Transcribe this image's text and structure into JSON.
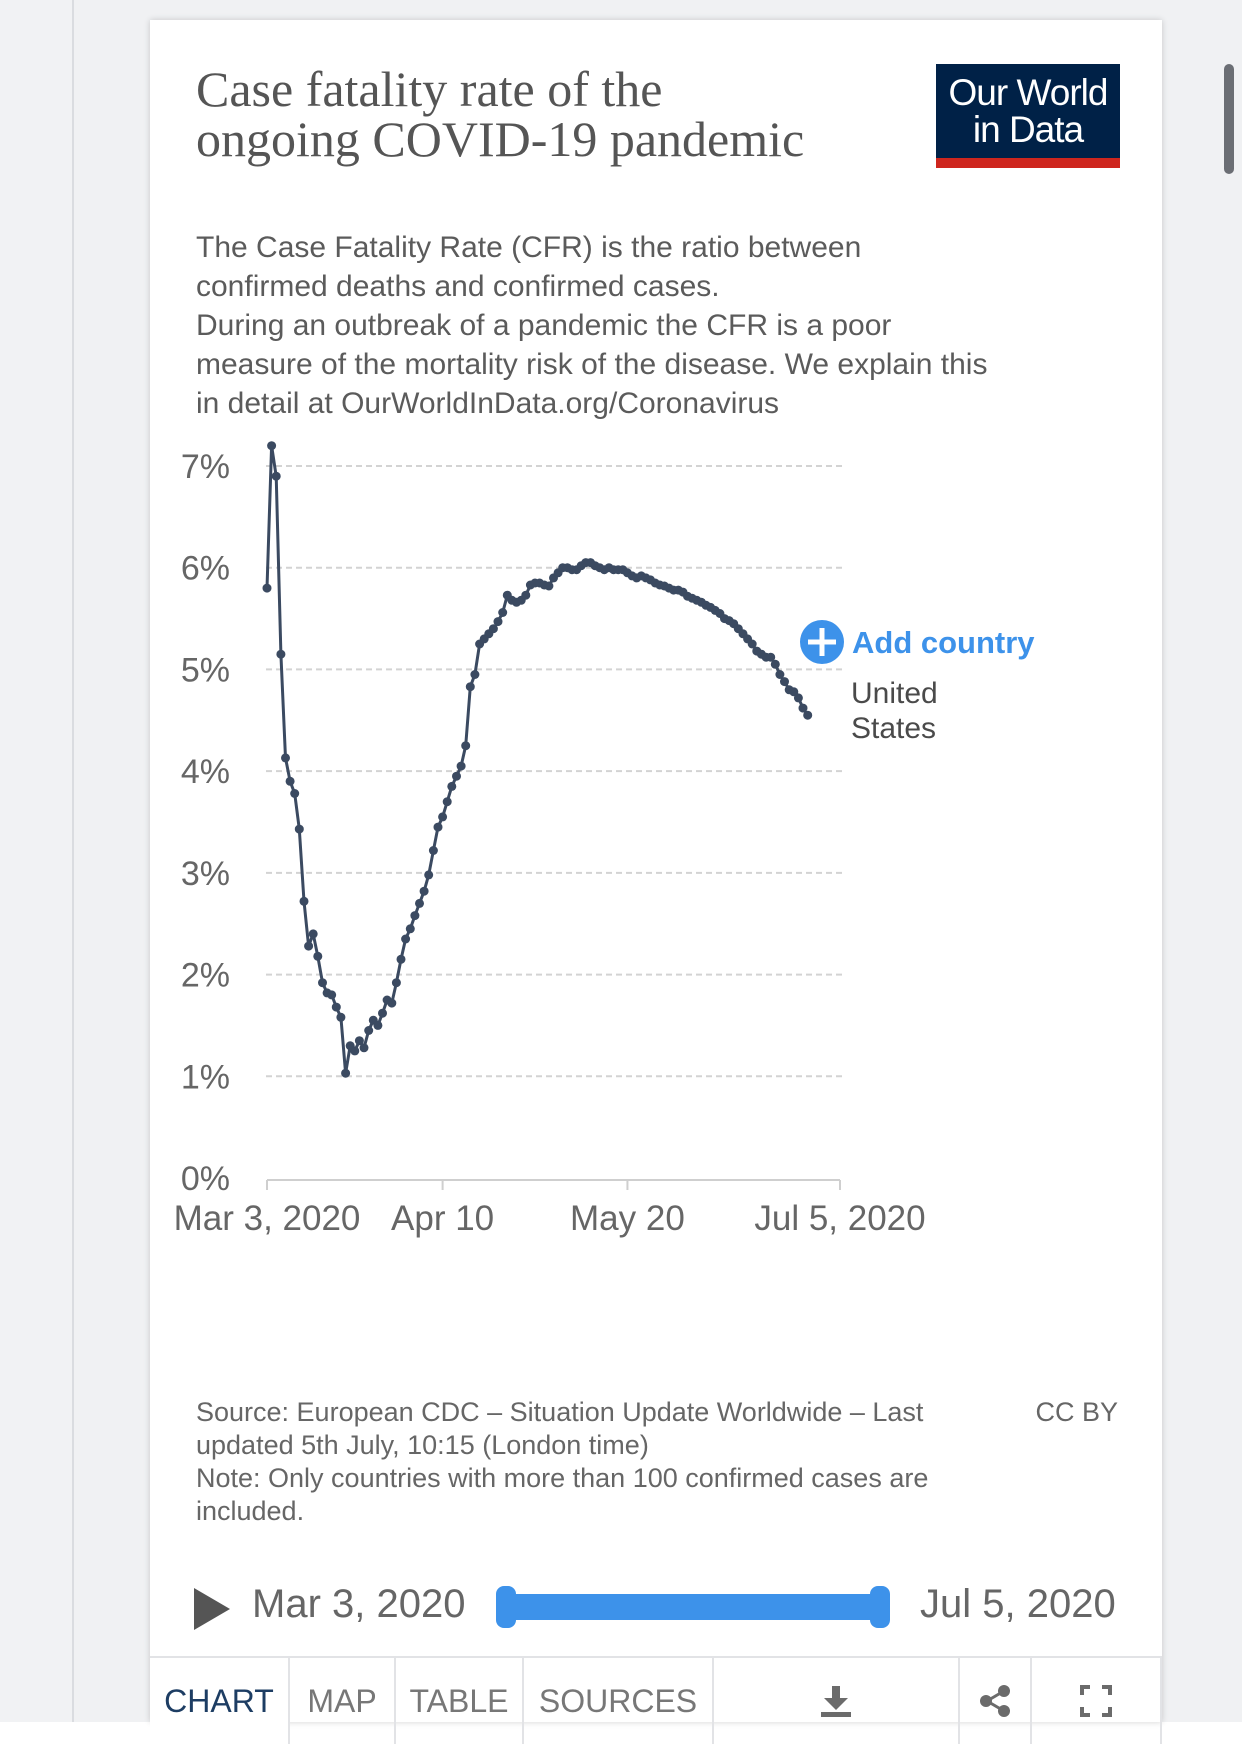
{
  "header": {
    "title": "Case fatality rate of the ongoing COVID-19 pandemic",
    "subtitle_lines": [
      "The Case Fatality Rate (CFR) is the ratio between",
      "confirmed deaths and confirmed cases.",
      "During an outbreak of a pandemic the CFR is a poor",
      "measure of the mortality risk of the disease. We explain this",
      "in detail at OurWorldInData.org/Coronavirus"
    ],
    "logo_line1": "Our World",
    "logo_line2": "in Data"
  },
  "colors": {
    "line": "#3b4a61",
    "accent": "#3d92ea",
    "logo_bg": "#002147",
    "logo_bar": "#ce261e",
    "text": "#5b5b5b"
  },
  "chart_data": {
    "type": "line",
    "title": "Case fatality rate of the ongoing COVID-19 pandemic",
    "xlabel": "",
    "ylabel": "",
    "ylim": [
      0,
      7
    ],
    "y_ticks": [
      "0%",
      "1%",
      "2%",
      "3%",
      "4%",
      "5%",
      "6%",
      "7%"
    ],
    "x_range": [
      "2020-03-03",
      "2020-07-05"
    ],
    "x_ticks": [
      {
        "date": "2020-03-03",
        "label": "Mar 3, 2020"
      },
      {
        "date": "2020-04-10",
        "label": "Apr 10"
      },
      {
        "date": "2020-05-20",
        "label": "May 20"
      },
      {
        "date": "2020-07-05",
        "label": "Jul 5, 2020"
      }
    ],
    "grid": true,
    "series": [
      {
        "name": "United States",
        "start_date": "2020-03-03",
        "values": [
          5.8,
          7.2,
          6.9,
          5.15,
          4.13,
          3.9,
          3.78,
          3.43,
          2.72,
          2.28,
          2.4,
          2.18,
          1.92,
          1.82,
          1.8,
          1.68,
          1.58,
          1.03,
          1.3,
          1.25,
          1.35,
          1.28,
          1.45,
          1.55,
          1.5,
          1.62,
          1.75,
          1.72,
          1.92,
          2.15,
          2.35,
          2.45,
          2.58,
          2.7,
          2.82,
          2.98,
          3.22,
          3.45,
          3.55,
          3.7,
          3.85,
          3.95,
          4.05,
          4.25,
          4.83,
          4.95,
          5.25,
          5.3,
          5.35,
          5.4,
          5.47,
          5.56,
          5.73,
          5.68,
          5.66,
          5.68,
          5.73,
          5.83,
          5.85,
          5.85,
          5.83,
          5.82,
          5.9,
          5.95,
          6.0,
          6.0,
          5.98,
          5.98,
          6.02,
          6.05,
          6.05,
          6.02,
          6.0,
          5.98,
          6.0,
          5.98,
          5.98,
          5.98,
          5.95,
          5.92,
          5.9,
          5.92,
          5.9,
          5.88,
          5.85,
          5.83,
          5.82,
          5.8,
          5.78,
          5.78,
          5.76,
          5.72,
          5.7,
          5.68,
          5.66,
          5.63,
          5.61,
          5.58,
          5.55,
          5.5,
          5.48,
          5.45,
          5.4,
          5.35,
          5.3,
          5.25,
          5.18,
          5.15,
          5.12,
          5.12,
          5.05,
          4.95,
          4.88,
          4.8,
          4.78,
          4.72,
          4.62,
          4.55
        ]
      }
    ],
    "legend": {
      "label_line1": "United",
      "label_line2": "States"
    },
    "add_country_label": "Add country"
  },
  "footer": {
    "source_lines": [
      "Source: European CDC – Situation Update Worldwide – Last",
      "updated 5th July, 10:15 (London time)",
      "Note: Only countries with more than 100 confirmed cases are",
      "included."
    ],
    "license": "CC BY"
  },
  "timeline": {
    "start_label": "Mar 3, 2020",
    "end_label": "Jul 5, 2020"
  },
  "tabs": [
    {
      "label": "CHART",
      "active": true
    },
    {
      "label": "MAP",
      "active": false
    },
    {
      "label": "TABLE",
      "active": false
    },
    {
      "label": "SOURCES",
      "active": false
    }
  ],
  "icons": [
    "download-icon",
    "share-icon",
    "fullscreen-icon"
  ]
}
